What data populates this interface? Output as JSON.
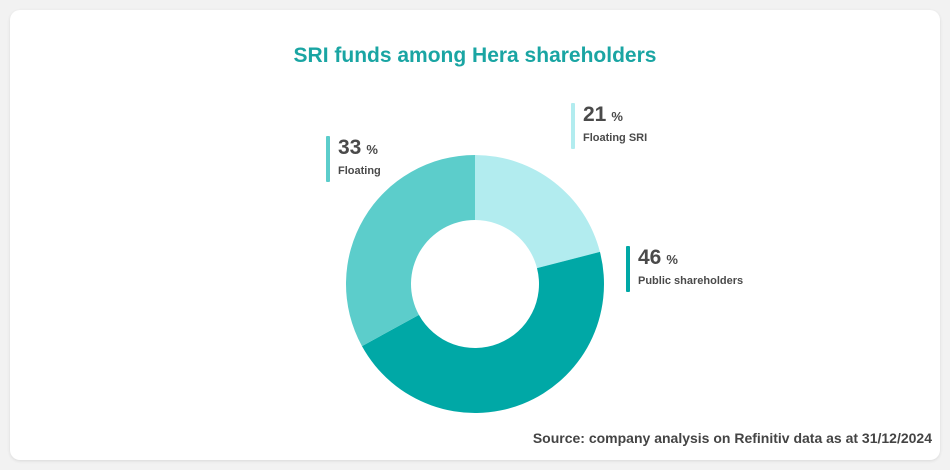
{
  "chart_data": {
    "type": "pie",
    "title": "SRI funds among Hera shareholders",
    "unit": "%",
    "slices": [
      {
        "name": "Floating SRI",
        "value": 21,
        "color": "#b2ecef"
      },
      {
        "name": "Public shareholders",
        "value": 46,
        "color": "#00a8a6"
      },
      {
        "name": "Floating",
        "value": 33,
        "color": "#5ccdcb"
      }
    ],
    "source": "Source: company analysis on Refinitiv data as at 31/12/2024"
  }
}
